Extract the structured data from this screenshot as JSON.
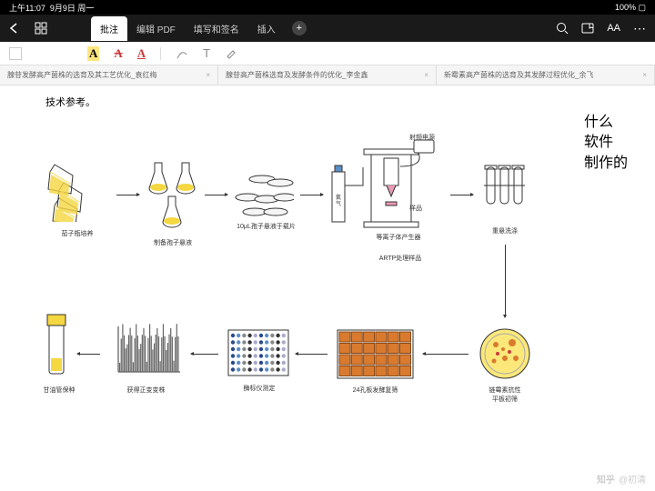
{
  "status": {
    "time": "上午11:07",
    "date": "9月9日 周一",
    "battery": "100%"
  },
  "toolbar_tabs": {
    "annotate": "批注",
    "edit": "编辑 PDF",
    "fill": "填写和签名",
    "insert": "插入"
  },
  "doc_tabs": {
    "t1": "腺苷发酵高产菌株的选育及其工艺优化_袁红梅",
    "t2": "腺苷高产菌株选育及发酵条件的优化_李金鑫",
    "t3": "新霉素高产菌株的选育及其发酵过程优化_余飞"
  },
  "paragraph": "技术参考。",
  "handwriting": {
    "l1": "什么",
    "l2": "软件",
    "l3": "制作的"
  },
  "labels": {
    "step1": "茄子瓶培养",
    "step2": "制备孢子悬液",
    "step3": "10μL孢子悬液于载片",
    "step4_top": "射频电源",
    "step4_sample": "样品",
    "step4_gen": "等离子体产生器",
    "step4_artp": "ARTP处理样品",
    "step5": "重悬洗涤",
    "step6": "链霉素抗性\n平板初筛",
    "step7": "24孔板发酵复筛",
    "step8": "酶标仪测定",
    "step9": "获得正变变株",
    "step10": "甘油管保种",
    "gas": "氦气"
  },
  "colors": {
    "yellow": "#f5d742",
    "orange": "#d97a2e",
    "blue": "#5a8fc7",
    "pink": "#e89ab5",
    "red_a": "#c93a3a",
    "gray": "#888888",
    "black": "#333333"
  },
  "watermark": {
    "site": "知乎",
    "user": "@初清"
  },
  "well_plate": {
    "rows": 4,
    "cols": 6
  },
  "chart": {
    "bars": 40
  }
}
